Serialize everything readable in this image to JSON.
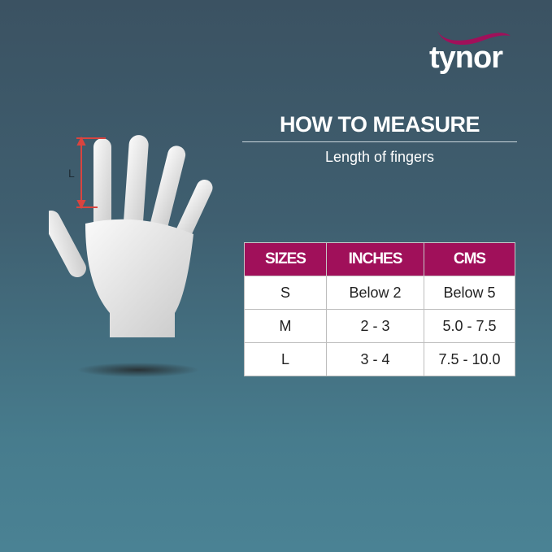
{
  "brand": {
    "name": "tynor",
    "accent": "#a0105a"
  },
  "heading": {
    "title": "HOW TO MEASURE",
    "subtitle": "Length of fingers"
  },
  "illustration": {
    "measure_label": "L",
    "measure_color": "#d9443f"
  },
  "size_table": {
    "headers": [
      "SIZES",
      "INCHES",
      "CMS"
    ],
    "rows": [
      [
        "S",
        "Below 2",
        "Below 5"
      ],
      [
        "M",
        "2 - 3",
        "5.0 - 7.5"
      ],
      [
        "L",
        "3 - 4",
        "7.5 - 10.0"
      ]
    ]
  }
}
